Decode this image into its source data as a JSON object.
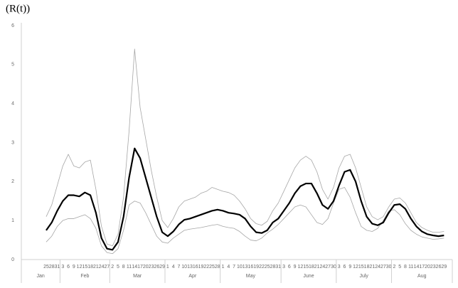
{
  "chart_data": {
    "type": "line",
    "title": "(R(t))",
    "months": [
      {
        "label": "Jan",
        "days": [
          "25",
          "28",
          "31"
        ]
      },
      {
        "label": "Feb",
        "days": [
          "3",
          "6",
          "9",
          "12",
          "15",
          "18",
          "21",
          "24",
          "27"
        ]
      },
      {
        "label": "Mar",
        "days": [
          "2",
          "5",
          "8",
          "11",
          "14",
          "17",
          "20",
          "23",
          "26",
          "29"
        ]
      },
      {
        "label": "Apr",
        "days": [
          "1",
          "4",
          "7",
          "10",
          "13",
          "16",
          "19",
          "22",
          "25",
          "28"
        ]
      },
      {
        "label": "May",
        "days": [
          "1",
          "4",
          "7",
          "10",
          "13",
          "16",
          "19",
          "22",
          "25",
          "28",
          "31"
        ]
      },
      {
        "label": "June",
        "days": [
          "3",
          "6",
          "9",
          "12",
          "15",
          "18",
          "21",
          "24",
          "27",
          "30"
        ]
      },
      {
        "label": "July",
        "days": [
          "3",
          "6",
          "9",
          "12",
          "15",
          "18",
          "21",
          "24",
          "27",
          "30"
        ]
      },
      {
        "label": "Aug",
        "days": [
          "2",
          "5",
          "8",
          "11",
          "14",
          "17",
          "20",
          "23",
          "26",
          "29"
        ]
      }
    ],
    "series": [
      {
        "color": "#a6a6a6",
        "width": 0.8,
        "values": [
          1.1,
          1.4,
          1.9,
          2.4,
          2.7,
          2.4,
          2.35,
          2.5,
          2.55,
          1.8,
          0.85,
          0.4,
          0.35,
          0.65,
          1.6,
          3.3,
          5.4,
          3.9,
          3.1,
          2.3,
          1.6,
          1.0,
          0.82,
          1.05,
          1.35,
          1.5,
          1.55,
          1.6,
          1.7,
          1.75,
          1.85,
          1.8,
          1.75,
          1.72,
          1.65,
          1.5,
          1.3,
          1.05,
          0.92,
          0.88,
          0.98,
          1.25,
          1.45,
          1.75,
          2.05,
          2.35,
          2.55,
          2.65,
          2.55,
          2.25,
          1.8,
          1.55,
          1.85,
          2.35,
          2.65,
          2.7,
          2.35,
          1.85,
          1.35,
          1.1,
          1.02,
          1.1,
          1.35,
          1.55,
          1.58,
          1.45,
          1.2,
          0.95,
          0.82,
          0.75,
          0.7,
          0.7,
          0.72
        ]
      },
      {
        "color": "#a6a6a6",
        "width": 0.8,
        "values": [
          0.45,
          0.6,
          0.85,
          1.0,
          1.05,
          1.05,
          1.1,
          1.15,
          1.05,
          0.8,
          0.35,
          0.18,
          0.15,
          0.28,
          0.75,
          1.4,
          1.5,
          1.45,
          1.2,
          0.9,
          0.6,
          0.45,
          0.42,
          0.55,
          0.65,
          0.75,
          0.78,
          0.8,
          0.82,
          0.85,
          0.88,
          0.9,
          0.85,
          0.82,
          0.8,
          0.72,
          0.6,
          0.5,
          0.48,
          0.55,
          0.68,
          0.78,
          0.9,
          1.05,
          1.2,
          1.35,
          1.4,
          1.35,
          1.15,
          0.95,
          0.9,
          1.05,
          1.45,
          1.8,
          1.85,
          1.6,
          1.2,
          0.85,
          0.75,
          0.72,
          0.8,
          1.0,
          1.25,
          1.28,
          1.15,
          0.92,
          0.75,
          0.65,
          0.58,
          0.55,
          0.52,
          0.53,
          0.55
        ]
      },
      {
        "color": "#000000",
        "width": 2.2,
        "values": [
          0.75,
          0.95,
          1.25,
          1.5,
          1.65,
          1.65,
          1.62,
          1.72,
          1.65,
          1.2,
          0.55,
          0.28,
          0.25,
          0.45,
          1.1,
          2.1,
          2.85,
          2.6,
          2.1,
          1.6,
          1.1,
          0.7,
          0.6,
          0.72,
          0.9,
          1.02,
          1.05,
          1.1,
          1.15,
          1.2,
          1.25,
          1.28,
          1.25,
          1.2,
          1.18,
          1.15,
          1.05,
          0.85,
          0.7,
          0.68,
          0.75,
          0.95,
          1.05,
          1.25,
          1.45,
          1.7,
          1.88,
          1.95,
          1.95,
          1.7,
          1.4,
          1.3,
          1.5,
          1.9,
          2.25,
          2.3,
          2.0,
          1.5,
          1.1,
          0.92,
          0.88,
          0.95,
          1.2,
          1.4,
          1.42,
          1.3,
          1.05,
          0.85,
          0.72,
          0.65,
          0.62,
          0.6,
          0.62
        ]
      }
    ],
    "ylim": [
      0,
      6
    ],
    "yticks": [
      0,
      1,
      2,
      3,
      4,
      5,
      6
    ]
  }
}
